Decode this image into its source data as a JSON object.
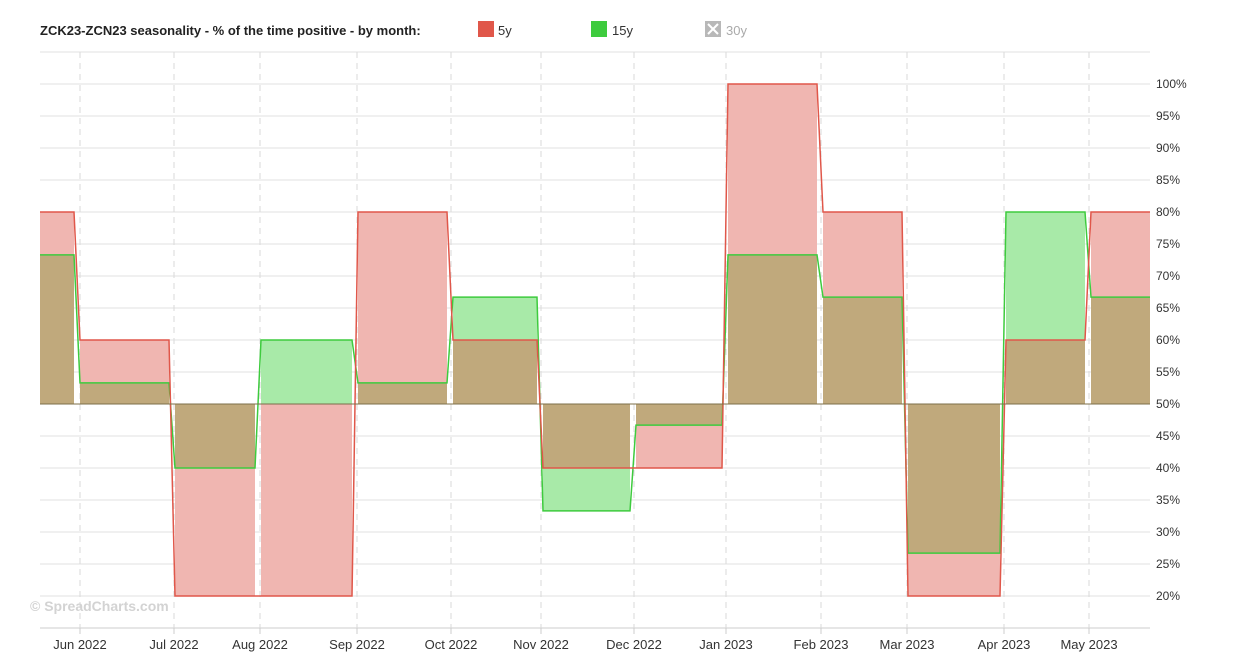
{
  "chart_data": {
    "type": "area",
    "title": "ZCK23-ZCN23 seasonality - % of the time positive - by month:",
    "baseline": 50,
    "ylim": [
      15,
      105
    ],
    "y_ticks": [
      20,
      25,
      30,
      35,
      40,
      45,
      50,
      55,
      60,
      65,
      70,
      75,
      80,
      85,
      90,
      95,
      100
    ],
    "y_tick_labels": [
      "20%",
      "25%",
      "30%",
      "35%",
      "40%",
      "45%",
      "50%",
      "55%",
      "60%",
      "65%",
      "70%",
      "75%",
      "80%",
      "85%",
      "90%",
      "95%",
      "100%"
    ],
    "x_tick_labels": [
      "Jun 2022",
      "Jul 2022",
      "Aug 2022",
      "Sep 2022",
      "Oct 2022",
      "Nov 2022",
      "Dec 2022",
      "Jan 2023",
      "Feb 2023",
      "Mar 2023",
      "Apr 2023",
      "May 2023"
    ],
    "grid": true,
    "legend_position": "top",
    "series": [
      {
        "name": "5y",
        "color": "#e0574a",
        "fill": "#f0b6b1",
        "enabled": true,
        "values": [
          80,
          60,
          20,
          20,
          80,
          60,
          40,
          40,
          100,
          80,
          20,
          60,
          80
        ]
      },
      {
        "name": "15y",
        "color": "#3ecb3e",
        "fill": "#a8eaa8",
        "enabled": true,
        "values": [
          73.3,
          53.3,
          40,
          60,
          53.3,
          66.7,
          33.3,
          46.7,
          73.3,
          66.7,
          26.7,
          80,
          66.7
        ]
      },
      {
        "name": "30y",
        "color": "#aaaaaa",
        "enabled": false,
        "values": []
      }
    ],
    "overlap_fill": "#c0a97c",
    "overlap_stroke": "#7a8f3a"
  },
  "watermark": "© SpreadCharts.com"
}
